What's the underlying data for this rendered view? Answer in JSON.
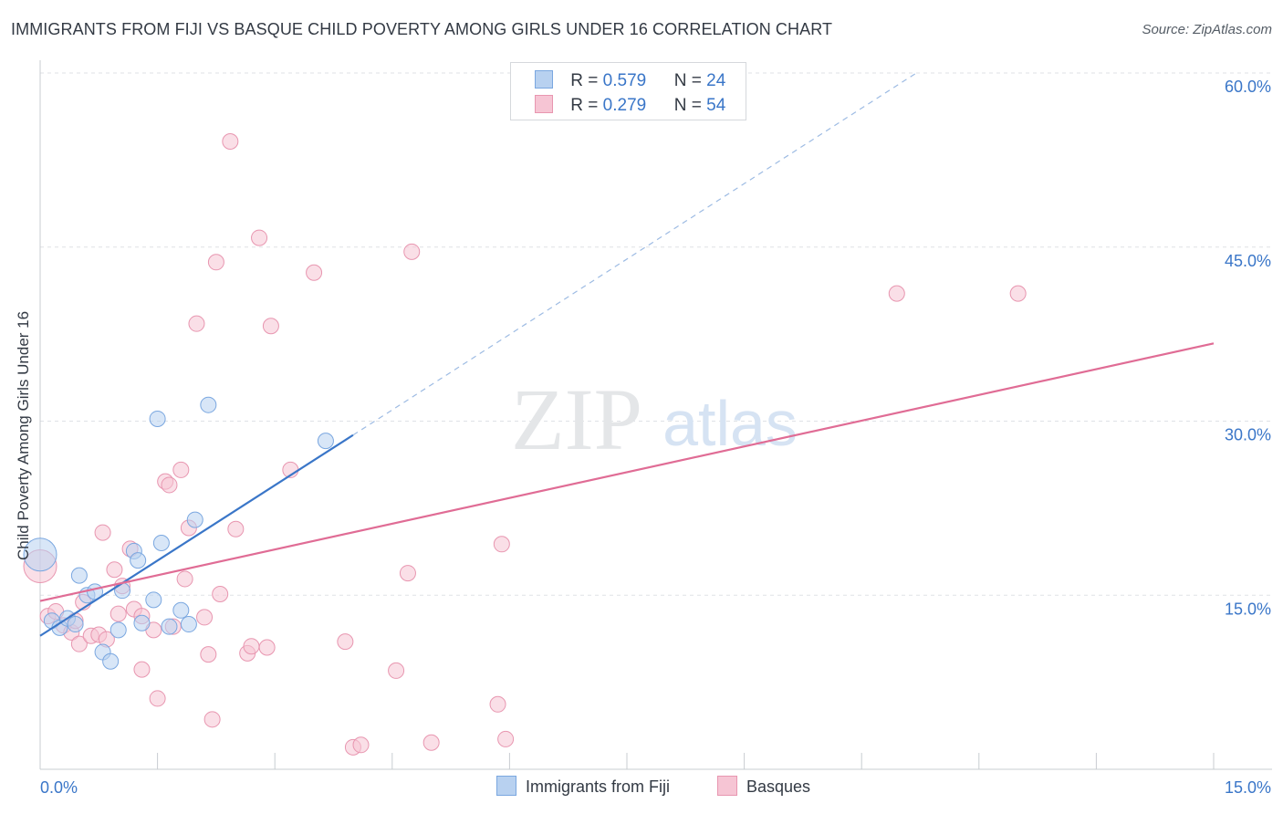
{
  "title": "IMMIGRANTS FROM FIJI VS BASQUE CHILD POVERTY AMONG GIRLS UNDER 16 CORRELATION CHART",
  "source": "Source: ZipAtlas.com",
  "watermark": {
    "zip": "ZIP",
    "atlas": "atlas"
  },
  "legend": {
    "rows": [
      {
        "r_label": "R = ",
        "r_value": "0.579",
        "n_label": "N = ",
        "n_value": "24"
      },
      {
        "r_label": "R = ",
        "r_value": "0.279",
        "n_label": "N = ",
        "n_value": "54"
      }
    ]
  },
  "chart_data": {
    "type": "scatter",
    "title": "IMMIGRANTS FROM FIJI VS BASQUE CHILD POVERTY AMONG GIRLS UNDER 16 CORRELATION CHART",
    "xlabel": "",
    "ylabel": "Child Poverty Among Girls Under 16",
    "xlim": [
      0,
      15
    ],
    "ylim": [
      0,
      60
    ],
    "x_tick_labels": [
      "0.0%",
      "15.0%"
    ],
    "y_tick_values": [
      15,
      30,
      45,
      60
    ],
    "y_tick_labels": [
      "15.0%",
      "30.0%",
      "45.0%",
      "60.0%"
    ],
    "grid": true,
    "legend_position": "top-center",
    "series": [
      {
        "name": "Immigrants from Fiji",
        "color": "#7aa7e0",
        "fill": "#b8d1f0",
        "line_color": "#3a76c8",
        "R": 0.579,
        "N": 24,
        "trend": {
          "x": [
            0,
            4.0
          ],
          "y": [
            11.5,
            28.8
          ]
        },
        "trend_extension": {
          "x": [
            4.0,
            11.2
          ],
          "y": [
            28.8,
            60.0
          ]
        },
        "points": [
          {
            "x": 0.0,
            "y": 18.5,
            "size": "large"
          },
          {
            "x": 0.15,
            "y": 12.8
          },
          {
            "x": 0.25,
            "y": 12.2
          },
          {
            "x": 0.35,
            "y": 13.0
          },
          {
            "x": 0.45,
            "y": 12.5
          },
          {
            "x": 0.5,
            "y": 16.7
          },
          {
            "x": 0.6,
            "y": 15.0
          },
          {
            "x": 0.7,
            "y": 15.3
          },
          {
            "x": 0.8,
            "y": 10.1
          },
          {
            "x": 0.9,
            "y": 9.3
          },
          {
            "x": 1.0,
            "y": 12.0
          },
          {
            "x": 1.05,
            "y": 15.4
          },
          {
            "x": 1.2,
            "y": 18.8
          },
          {
            "x": 1.25,
            "y": 18.0
          },
          {
            "x": 1.3,
            "y": 12.6
          },
          {
            "x": 1.45,
            "y": 14.6
          },
          {
            "x": 1.5,
            "y": 30.2
          },
          {
            "x": 1.55,
            "y": 19.5
          },
          {
            "x": 1.65,
            "y": 12.3
          },
          {
            "x": 1.8,
            "y": 13.7
          },
          {
            "x": 1.9,
            "y": 12.5
          },
          {
            "x": 1.98,
            "y": 21.5
          },
          {
            "x": 2.15,
            "y": 31.4
          },
          {
            "x": 3.65,
            "y": 28.3
          }
        ]
      },
      {
        "name": "Basques",
        "color": "#e896b0",
        "fill": "#f6c5d4",
        "line_color": "#e06c95",
        "R": 0.279,
        "N": 54,
        "trend": {
          "x": [
            0,
            15.0
          ],
          "y": [
            14.5,
            36.7
          ]
        },
        "points": [
          {
            "x": 0.0,
            "y": 17.5,
            "size": "large"
          },
          {
            "x": 0.1,
            "y": 13.2
          },
          {
            "x": 0.2,
            "y": 13.6
          },
          {
            "x": 0.3,
            "y": 12.4
          },
          {
            "x": 0.4,
            "y": 11.8
          },
          {
            "x": 0.45,
            "y": 12.8
          },
          {
            "x": 0.5,
            "y": 10.8
          },
          {
            "x": 0.55,
            "y": 14.4
          },
          {
            "x": 0.65,
            "y": 11.5
          },
          {
            "x": 0.75,
            "y": 11.6
          },
          {
            "x": 0.8,
            "y": 20.4
          },
          {
            "x": 0.85,
            "y": 11.2
          },
          {
            "x": 0.95,
            "y": 17.2
          },
          {
            "x": 1.0,
            "y": 13.4
          },
          {
            "x": 1.05,
            "y": 15.8
          },
          {
            "x": 1.15,
            "y": 19.0
          },
          {
            "x": 1.2,
            "y": 13.8
          },
          {
            "x": 1.3,
            "y": 13.2
          },
          {
            "x": 1.3,
            "y": 8.6
          },
          {
            "x": 1.45,
            "y": 12.0
          },
          {
            "x": 1.5,
            "y": 6.1
          },
          {
            "x": 1.6,
            "y": 24.8
          },
          {
            "x": 1.65,
            "y": 24.5
          },
          {
            "x": 1.7,
            "y": 12.3
          },
          {
            "x": 1.8,
            "y": 25.8
          },
          {
            "x": 1.85,
            "y": 16.4
          },
          {
            "x": 1.9,
            "y": 20.8
          },
          {
            "x": 2.0,
            "y": 38.4
          },
          {
            "x": 2.1,
            "y": 13.1
          },
          {
            "x": 2.15,
            "y": 9.9
          },
          {
            "x": 2.2,
            "y": 4.3
          },
          {
            "x": 2.25,
            "y": 43.7
          },
          {
            "x": 2.3,
            "y": 15.1
          },
          {
            "x": 2.43,
            "y": 54.1
          },
          {
            "x": 2.5,
            "y": 20.7
          },
          {
            "x": 2.65,
            "y": 10.0
          },
          {
            "x": 2.7,
            "y": 10.6
          },
          {
            "x": 2.8,
            "y": 45.8
          },
          {
            "x": 2.9,
            "y": 10.5
          },
          {
            "x": 2.95,
            "y": 38.2
          },
          {
            "x": 3.2,
            "y": 25.8
          },
          {
            "x": 3.5,
            "y": 42.8
          },
          {
            "x": 3.9,
            "y": 11.0
          },
          {
            "x": 4.0,
            "y": 1.9
          },
          {
            "x": 4.1,
            "y": 2.1
          },
          {
            "x": 4.55,
            "y": 8.5
          },
          {
            "x": 4.7,
            "y": 16.9
          },
          {
            "x": 4.75,
            "y": 44.6
          },
          {
            "x": 5.0,
            "y": 2.3
          },
          {
            "x": 5.85,
            "y": 5.6
          },
          {
            "x": 5.9,
            "y": 19.4
          },
          {
            "x": 5.95,
            "y": 2.6
          },
          {
            "x": 10.95,
            "y": 41.0
          },
          {
            "x": 12.5,
            "y": 41.0
          }
        ]
      }
    ]
  }
}
